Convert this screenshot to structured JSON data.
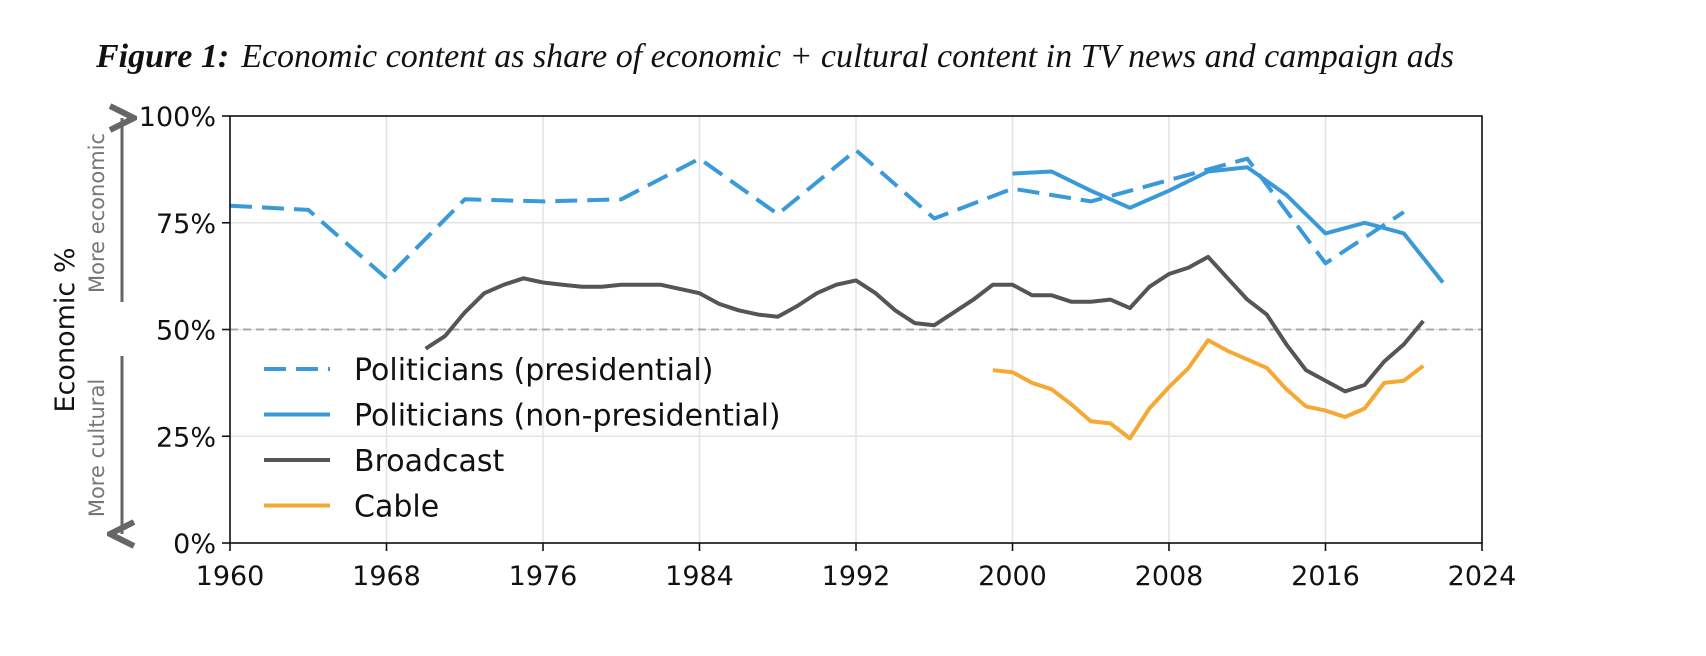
{
  "figure": {
    "number": "Figure 1:",
    "caption": "Economic content as share of economic + cultural content in TV news and campaign ads"
  },
  "chart_data": {
    "type": "line",
    "title": "Figure 1: Economic content as share of economic + cultural content in TV news and campaign ads",
    "ylabel": "Economic %",
    "xlabel": "",
    "direction_labels": {
      "up": "More economic",
      "down": "More cultural"
    },
    "xlim": [
      1960,
      2024
    ],
    "ylim": [
      0,
      100
    ],
    "xticks": [
      1960,
      1968,
      1976,
      1984,
      1992,
      2000,
      2008,
      2016,
      2024
    ],
    "yticks": [
      0,
      25,
      50,
      75,
      100
    ],
    "ytick_labels": [
      "0%",
      "25%",
      "50%",
      "75%",
      "100%"
    ],
    "reference_line": {
      "y": 50,
      "style": "dashed",
      "color": "#aaaaaa"
    },
    "grid": true,
    "legend_position": "lower-left",
    "series": [
      {
        "name": "Politicians (presidential)",
        "color": "#3a9ad9",
        "style": "dashed",
        "x": [
          1960,
          1964,
          1968,
          1972,
          1976,
          1980,
          1984,
          1988,
          1992,
          1996,
          2000,
          2004,
          2008,
          2012,
          2016,
          2020
        ],
        "y": [
          79,
          78,
          62,
          80.5,
          80,
          80.5,
          90,
          77,
          92,
          76,
          83,
          80,
          85,
          90,
          65.5,
          77.5
        ]
      },
      {
        "name": "Politicians (non-presidential)",
        "color": "#3a9ad9",
        "style": "solid",
        "x": [
          2000,
          2002,
          2004,
          2006,
          2008,
          2010,
          2012,
          2014,
          2016,
          2018,
          2020,
          2022
        ],
        "y": [
          86.5,
          87,
          82.5,
          78.5,
          82.5,
          87,
          88,
          81.5,
          72.5,
          75,
          72.5,
          61
        ]
      },
      {
        "name": "Broadcast",
        "color": "#555555",
        "style": "solid",
        "x": [
          1970,
          1971,
          1972,
          1973,
          1974,
          1975,
          1976,
          1977,
          1978,
          1979,
          1980,
          1981,
          1982,
          1983,
          1984,
          1985,
          1986,
          1987,
          1988,
          1989,
          1990,
          1991,
          1992,
          1993,
          1994,
          1995,
          1996,
          1997,
          1998,
          1999,
          2000,
          2001,
          2002,
          2003,
          2004,
          2005,
          2006,
          2007,
          2008,
          2009,
          2010,
          2011,
          2012,
          2013,
          2014,
          2015,
          2016,
          2017,
          2018,
          2019,
          2020,
          2021
        ],
        "y": [
          45.5,
          48.5,
          54,
          58.5,
          60.5,
          62,
          61,
          60.5,
          60,
          60,
          60.5,
          60.5,
          60.5,
          59.5,
          58.5,
          56,
          54.5,
          53.5,
          53,
          55.5,
          58.5,
          60.5,
          61.5,
          58.5,
          54.5,
          51.5,
          51,
          54,
          57,
          60.5,
          60.5,
          58,
          58,
          56.5,
          56.5,
          57,
          55,
          60,
          63,
          64.5,
          67,
          62,
          57,
          53.5,
          46.5,
          40.5,
          38,
          35.5,
          37,
          42.5,
          46.5,
          52
        ]
      },
      {
        "name": "Cable",
        "color": "#f5a833",
        "style": "solid",
        "x": [
          1999,
          2000,
          2001,
          2002,
          2003,
          2004,
          2005,
          2006,
          2007,
          2008,
          2009,
          2010,
          2011,
          2012,
          2013,
          2014,
          2015,
          2016,
          2017,
          2018,
          2019,
          2020,
          2021
        ],
        "y": [
          40.5,
          40,
          37.5,
          36,
          32.5,
          28.5,
          28,
          24.5,
          31.5,
          36.5,
          41,
          47.5,
          45,
          43,
          41,
          36,
          32,
          31,
          29.5,
          31.5,
          37.5,
          38,
          41.5
        ]
      }
    ]
  }
}
